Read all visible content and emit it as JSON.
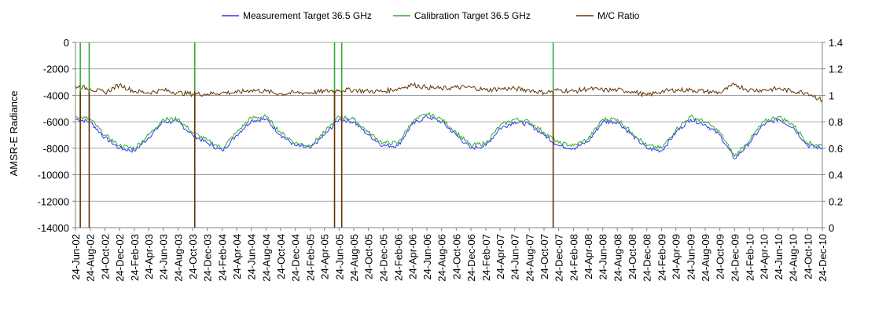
{
  "chart_data": {
    "type": "line",
    "title": "",
    "ylabel": "AMSR-E Radiance",
    "ylabel_right": "",
    "xlabel": "",
    "ylim": [
      -14000,
      0
    ],
    "y2lim": [
      0,
      1.4
    ],
    "y_ticks": [
      "0",
      "-2000",
      "-4000",
      "-6000",
      "-8000",
      "-10000",
      "-12000",
      "-14000"
    ],
    "y2_ticks": [
      "1.4",
      "1.2",
      "1",
      "0.8",
      "0.6",
      "0.4",
      "0.2",
      "0"
    ],
    "x_ticks": [
      "24-Jun-02",
      "24-Aug-02",
      "24-Oct-02",
      "24-Dec-02",
      "24-Feb-03",
      "24-Apr-03",
      "24-Jun-03",
      "24-Aug-03",
      "24-Oct-03",
      "24-Dec-03",
      "24-Feb-04",
      "24-Apr-04",
      "24-Jun-04",
      "24-Aug-04",
      "24-Oct-04",
      "24-Dec-04",
      "24-Feb-05",
      "24-Apr-05",
      "24-Jun-05",
      "24-Aug-05",
      "24-Oct-05",
      "24-Dec-05",
      "24-Feb-06",
      "24-Apr-06",
      "24-Jun-06",
      "24-Aug-06",
      "24-Oct-06",
      "24-Dec-06",
      "24-Feb-07",
      "24-Apr-07",
      "24-Jun-07",
      "24-Aug-07",
      "24-Oct-07",
      "24-Dec-07",
      "24-Feb-08",
      "24-Apr-08",
      "24-Jun-08",
      "24-Aug-08",
      "24-Oct-08",
      "24-Dec-08",
      "24-Feb-09",
      "24-Apr-09",
      "24-Jun-09",
      "24-Aug-09",
      "24-Oct-09",
      "24-Dec-09",
      "24-Feb-10",
      "24-Apr-10",
      "24-Jun-10",
      "24-Aug-10",
      "24-Oct-10",
      "24-Dec-10"
    ],
    "x_start": "24-Jun-02",
    "x_end": "24-Dec-10",
    "grid": "horizontal",
    "legend_position": "top",
    "series": [
      {
        "name": "Measurement Target 36.5 GHz",
        "axis": "left",
        "color": "#3333ff",
        "x": [
          "24-Jun-02",
          "24-Aug-02",
          "24-Oct-02",
          "24-Dec-02",
          "24-Feb-03",
          "24-Apr-03",
          "24-Jun-03",
          "24-Aug-03",
          "24-Oct-03",
          "24-Dec-03",
          "24-Feb-04",
          "24-Apr-04",
          "24-Jun-04",
          "24-Aug-04",
          "24-Oct-04",
          "24-Dec-04",
          "24-Feb-05",
          "24-Apr-05",
          "24-Jun-05",
          "24-Aug-05",
          "24-Oct-05",
          "24-Dec-05",
          "24-Feb-06",
          "24-Apr-06",
          "24-Jun-06",
          "24-Aug-06",
          "24-Oct-06",
          "24-Dec-06",
          "24-Feb-07",
          "24-Apr-07",
          "24-Jun-07",
          "24-Aug-07",
          "24-Oct-07",
          "24-Dec-07",
          "24-Feb-08",
          "24-Apr-08",
          "24-Jun-08",
          "24-Aug-08",
          "24-Oct-08",
          "24-Dec-08",
          "24-Feb-09",
          "24-Apr-09",
          "24-Jun-09",
          "24-Aug-09",
          "24-Oct-09",
          "24-Dec-09",
          "24-Feb-10",
          "24-Apr-10",
          "24-Jun-10",
          "24-Aug-10",
          "24-Oct-10",
          "24-Dec-10"
        ],
        "y": [
          -5800,
          -6000,
          -7200,
          -8000,
          -8200,
          -7200,
          -6000,
          -6000,
          -7000,
          -7600,
          -8200,
          -7000,
          -5900,
          -5800,
          -7000,
          -7800,
          -8000,
          -7000,
          -5800,
          -6000,
          -7000,
          -7800,
          -7800,
          -6200,
          -5600,
          -6000,
          -7000,
          -8000,
          -7800,
          -6500,
          -6000,
          -6200,
          -7000,
          -7800,
          -8000,
          -7500,
          -6000,
          -6000,
          -7000,
          -8000,
          -8200,
          -6800,
          -5800,
          -6200,
          -7000,
          -8800,
          -7600,
          -6200,
          -5800,
          -6400,
          -7800,
          -8000
        ]
      },
      {
        "name": "Calibration Target 36.5 GHz",
        "axis": "left",
        "color": "#33aa33",
        "x": [
          "24-Jun-02",
          "24-Aug-02",
          "24-Oct-02",
          "24-Dec-02",
          "24-Feb-03",
          "24-Apr-03",
          "24-Jun-03",
          "24-Aug-03",
          "24-Oct-03",
          "24-Dec-03",
          "24-Feb-04",
          "24-Apr-04",
          "24-Jun-04",
          "24-Aug-04",
          "24-Oct-04",
          "24-Dec-04",
          "24-Feb-05",
          "24-Apr-05",
          "24-Jun-05",
          "24-Aug-05",
          "24-Oct-05",
          "24-Dec-05",
          "24-Feb-06",
          "24-Apr-06",
          "24-Jun-06",
          "24-Aug-06",
          "24-Oct-06",
          "24-Dec-06",
          "24-Feb-07",
          "24-Apr-07",
          "24-Jun-07",
          "24-Aug-07",
          "24-Oct-07",
          "24-Dec-07",
          "24-Feb-08",
          "24-Apr-08",
          "24-Jun-08",
          "24-Aug-08",
          "24-Oct-08",
          "24-Dec-08",
          "24-Feb-09",
          "24-Apr-09",
          "24-Jun-09",
          "24-Aug-09",
          "24-Oct-09",
          "24-Dec-09",
          "24-Feb-10",
          "24-Apr-10",
          "24-Jun-10",
          "24-Aug-10",
          "24-Oct-10",
          "24-Dec-10"
        ],
        "y": [
          -5600,
          -5800,
          -7000,
          -7800,
          -8000,
          -7000,
          -5800,
          -5800,
          -6800,
          -7400,
          -8000,
          -6800,
          -5700,
          -5600,
          -6800,
          -7600,
          -7800,
          -6800,
          -5600,
          -5800,
          -6800,
          -7600,
          -7600,
          -6000,
          -5400,
          -5800,
          -6800,
          -7800,
          -7600,
          -6300,
          -5800,
          -6000,
          -6800,
          -7600,
          -7800,
          -7300,
          -5800,
          -5800,
          -6800,
          -7800,
          -8000,
          -6600,
          -5600,
          -6000,
          -6800,
          -8600,
          -7400,
          -6000,
          -5600,
          -6200,
          -7600,
          -7800
        ]
      },
      {
        "name": "M/C Ratio",
        "axis": "right",
        "color": "#663300",
        "x": [
          "24-Jun-02",
          "24-Aug-02",
          "24-Oct-02",
          "24-Dec-02",
          "24-Feb-03",
          "24-Apr-03",
          "24-Jun-03",
          "24-Aug-03",
          "24-Oct-03",
          "24-Dec-03",
          "24-Feb-04",
          "24-Apr-04",
          "24-Jun-04",
          "24-Aug-04",
          "24-Oct-04",
          "24-Dec-04",
          "24-Feb-05",
          "24-Apr-05",
          "24-Jun-05",
          "24-Aug-05",
          "24-Oct-05",
          "24-Dec-05",
          "24-Feb-06",
          "24-Apr-06",
          "24-Jun-06",
          "24-Aug-06",
          "24-Oct-06",
          "24-Dec-06",
          "24-Feb-07",
          "24-Apr-07",
          "24-Jun-07",
          "24-Aug-07",
          "24-Oct-07",
          "24-Dec-07",
          "24-Feb-08",
          "24-Apr-08",
          "24-Jun-08",
          "24-Aug-08",
          "24-Oct-08",
          "24-Dec-08",
          "24-Feb-09",
          "24-Apr-09",
          "24-Jun-09",
          "24-Aug-09",
          "24-Oct-09",
          "24-Dec-09",
          "24-Feb-10",
          "24-Apr-10",
          "24-Jun-10",
          "24-Aug-10",
          "24-Oct-10",
          "24-Dec-10"
        ],
        "y": [
          1.07,
          1.05,
          1.02,
          1.08,
          1.03,
          1.02,
          1.04,
          1.02,
          1.01,
          1.01,
          1.02,
          1.02,
          1.04,
          1.03,
          1.01,
          1.02,
          1.02,
          1.03,
          1.04,
          1.04,
          1.03,
          1.03,
          1.05,
          1.08,
          1.06,
          1.05,
          1.06,
          1.06,
          1.04,
          1.05,
          1.05,
          1.04,
          1.02,
          1.04,
          1.03,
          1.05,
          1.04,
          1.04,
          1.03,
          1.0,
          1.03,
          1.04,
          1.04,
          1.03,
          1.02,
          1.08,
          1.04,
          1.04,
          1.05,
          1.03,
          1.02,
          0.96
        ]
      }
    ],
    "spikes": [
      {
        "series": "Calibration Target 36.5 GHz",
        "x": "14-Jul-02",
        "y": 0
      },
      {
        "series": "Calibration Target 36.5 GHz",
        "x": "20-Aug-02",
        "y": 0
      },
      {
        "series": "Calibration Target 36.5 GHz",
        "x": "02-Nov-03",
        "y": 0
      },
      {
        "series": "Calibration Target 36.5 GHz",
        "x": "05-Jun-05",
        "y": 0
      },
      {
        "series": "Calibration Target 36.5 GHz",
        "x": "05-Jul-05",
        "y": 0
      },
      {
        "series": "Calibration Target 36.5 GHz",
        "x": "01-Dec-07",
        "y": 0
      },
      {
        "series": "M/C Ratio",
        "x": "14-Jul-02",
        "y": 0
      },
      {
        "series": "M/C Ratio",
        "x": "20-Aug-02",
        "y": 0
      },
      {
        "series": "M/C Ratio",
        "x": "02-Nov-03",
        "y": 0
      },
      {
        "series": "M/C Ratio",
        "x": "05-Jun-05",
        "y": 0
      },
      {
        "series": "M/C Ratio",
        "x": "05-Jul-05",
        "y": 0
      },
      {
        "series": "M/C Ratio",
        "x": "01-Dec-07",
        "y": 0
      }
    ]
  }
}
